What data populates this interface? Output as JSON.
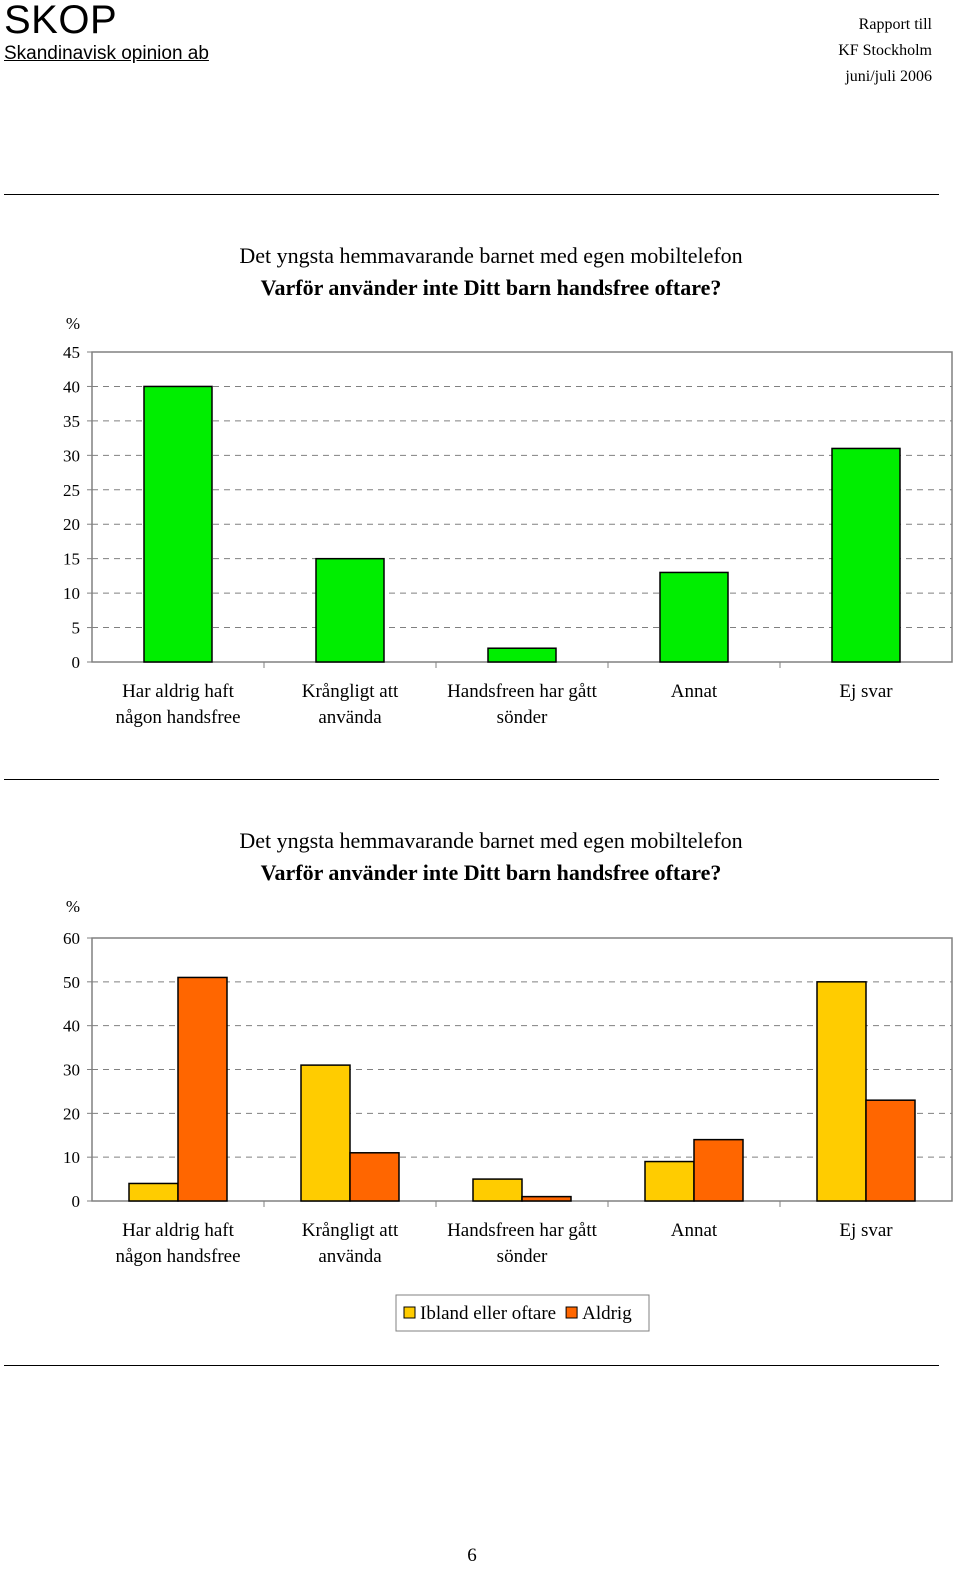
{
  "header": {
    "logo": "SKOP",
    "company": "Skandinavisk opinion ab",
    "right_lines": [
      "Rapport till",
      "KF Stockholm",
      "juni/juli 2006"
    ]
  },
  "chart_data": [
    {
      "type": "bar",
      "title": "Det yngsta hemmavarande barnet med egen mobiltelefon",
      "subtitle": "Varför använder inte Ditt barn handsfree oftare?",
      "ylabel": "%",
      "ylim": [
        0,
        45
      ],
      "yticks": [
        0,
        5,
        10,
        15,
        20,
        25,
        30,
        35,
        40,
        45
      ],
      "grid": true,
      "categories": [
        [
          "Har aldrig haft",
          "någon handsfree"
        ],
        [
          "Krångligt att",
          "använda"
        ],
        [
          "Handsfreen har gått",
          "sönder"
        ],
        [
          "Annat"
        ],
        [
          "Ej svar"
        ]
      ],
      "series": [
        {
          "values": [
            40,
            15,
            2,
            13,
            31
          ],
          "color": "#00ee00"
        }
      ]
    },
    {
      "type": "bar",
      "title": "Det yngsta hemmavarande barnet med egen mobiltelefon",
      "subtitle": "Varför använder inte Ditt barn handsfree oftare?",
      "ylabel": "%",
      "ylim": [
        0,
        60
      ],
      "yticks": [
        0,
        10,
        20,
        30,
        40,
        50,
        60
      ],
      "grid": true,
      "legend_position": "bottom",
      "categories": [
        [
          "Har aldrig haft",
          "någon handsfree"
        ],
        [
          "Krångligt att",
          "använda"
        ],
        [
          "Handsfreen har gått",
          "sönder"
        ],
        [
          "Annat"
        ],
        [
          "Ej svar"
        ]
      ],
      "series": [
        {
          "name": "Ibland eller oftare",
          "values": [
            4,
            31,
            5,
            9,
            50
          ],
          "color": "#ffcc00"
        },
        {
          "name": "Aldrig",
          "values": [
            51,
            11,
            1,
            14,
            23
          ],
          "color": "#ff6600"
        }
      ]
    }
  ],
  "page_number": "6"
}
